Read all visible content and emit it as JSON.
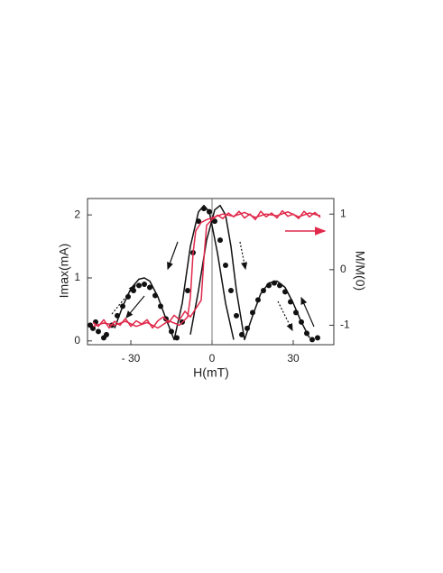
{
  "chart_data": {
    "type": "scatter",
    "x_label": "H(mT)",
    "y_label": "Imax(mA)",
    "y2_label": "M/M(0)",
    "xlim": [
      -46,
      45
    ],
    "ylim": [
      -0.06,
      2.26
    ],
    "y2lim": [
      -1.35,
      1.28
    ],
    "xticks": [
      {
        "value": -30,
        "label": "- 30"
      },
      0,
      30
    ],
    "yticks": [
      0,
      1,
      2
    ],
    "y2ticks": [
      -1,
      0,
      1
    ],
    "zero_line": true,
    "series": [
      {
        "type": "scatter",
        "color": "#111111",
        "x": [
          -45,
          -44,
          -43,
          -42,
          -40,
          -39,
          -37,
          -35,
          -33,
          -31,
          -29,
          -27,
          -25,
          -23,
          -21,
          -19,
          -17,
          -15,
          -13,
          -11,
          -9,
          -7,
          -5,
          -3,
          -1,
          1,
          3,
          5,
          7,
          9,
          11,
          13,
          15,
          17,
          19,
          21,
          23,
          25,
          27,
          29,
          31,
          33,
          35,
          37,
          39
        ],
        "values": [
          0.25,
          0.2,
          0.3,
          0.15,
          0.05,
          0.1,
          0.25,
          0.4,
          0.55,
          0.7,
          0.8,
          0.88,
          0.9,
          0.85,
          0.72,
          0.55,
          0.35,
          0.15,
          0.05,
          0.3,
          0.8,
          1.4,
          1.9,
          2.1,
          2.05,
          1.9,
          1.6,
          1.2,
          0.8,
          0.4,
          0.1,
          0.2,
          0.45,
          0.65,
          0.8,
          0.88,
          0.92,
          0.88,
          0.78,
          0.62,
          0.45,
          0.3,
          0.12,
          0.02,
          0.05
        ]
      },
      {
        "type": "line",
        "color": "#111111",
        "x": [
          -36,
          -33,
          -30,
          -27,
          -25,
          -23,
          -20,
          -17,
          -14,
          -11,
          -8,
          -5,
          -3,
          -1,
          2,
          5,
          8
        ],
        "values": [
          0.2,
          0.55,
          0.83,
          0.98,
          1.0,
          0.95,
          0.7,
          0.35,
          0.02,
          0.6,
          1.5,
          2.05,
          2.15,
          2.05,
          1.4,
          0.6,
          0.02
        ]
      },
      {
        "type": "line",
        "color": "#111111",
        "x": [
          -8,
          -5,
          -2,
          1,
          3,
          5,
          7,
          9,
          12,
          15,
          18,
          21,
          24,
          27,
          30,
          33,
          36
        ],
        "values": [
          0.1,
          0.8,
          1.6,
          2.08,
          2.15,
          2.0,
          1.5,
          0.8,
          0.02,
          0.4,
          0.75,
          0.92,
          0.95,
          0.85,
          0.6,
          0.3,
          0.05
        ]
      },
      {
        "type": "line",
        "color": "#e0284a",
        "axis": "y2",
        "x": [
          -44,
          -42,
          -40,
          -38,
          -36,
          -34,
          -32,
          -30,
          -28,
          -26,
          -24,
          -22,
          -20,
          -18,
          -16,
          -14,
          -12,
          -10,
          -8,
          -6,
          -4,
          -3,
          -2,
          0,
          2,
          4,
          6,
          8,
          10,
          12,
          14,
          16,
          18,
          20,
          22,
          24,
          26,
          28,
          30,
          32,
          34,
          36,
          38,
          40
        ],
        "values": [
          -0.95,
          -1.02,
          -0.9,
          -1.05,
          -0.93,
          -1.0,
          -0.88,
          -1.02,
          -0.92,
          -0.98,
          -0.9,
          -1.05,
          -0.92,
          -0.85,
          -0.95,
          -0.82,
          -0.9,
          -0.75,
          -0.85,
          -0.7,
          -0.55,
          0.2,
          0.8,
          0.9,
          0.98,
          0.92,
          1.02,
          0.95,
          1.05,
          0.93,
          1.0,
          0.9,
          1.05,
          0.95,
          1.02,
          0.93,
          1.06,
          0.96,
          1.0,
          0.92,
          1.05,
          0.95,
          1.03,
          0.94
        ]
      },
      {
        "type": "line",
        "color": "#e0284a",
        "axis": "y2",
        "x": [
          40,
          36,
          32,
          28,
          24,
          20,
          16,
          12,
          8,
          4,
          1,
          -2,
          -4,
          -6,
          -7,
          -8,
          -9,
          -12,
          -16,
          -20,
          -24,
          -28,
          -32,
          -36,
          -40,
          -44
        ],
        "values": [
          0.97,
          1.02,
          0.95,
          1.04,
          0.97,
          1.0,
          0.94,
          1.03,
          0.96,
          1.0,
          0.95,
          0.9,
          0.85,
          0.7,
          0.3,
          -0.5,
          -0.85,
          -1.0,
          -0.92,
          -1.05,
          -0.95,
          -1.02,
          -0.93,
          -1.0,
          -0.96,
          -1.02
        ]
      }
    ]
  }
}
